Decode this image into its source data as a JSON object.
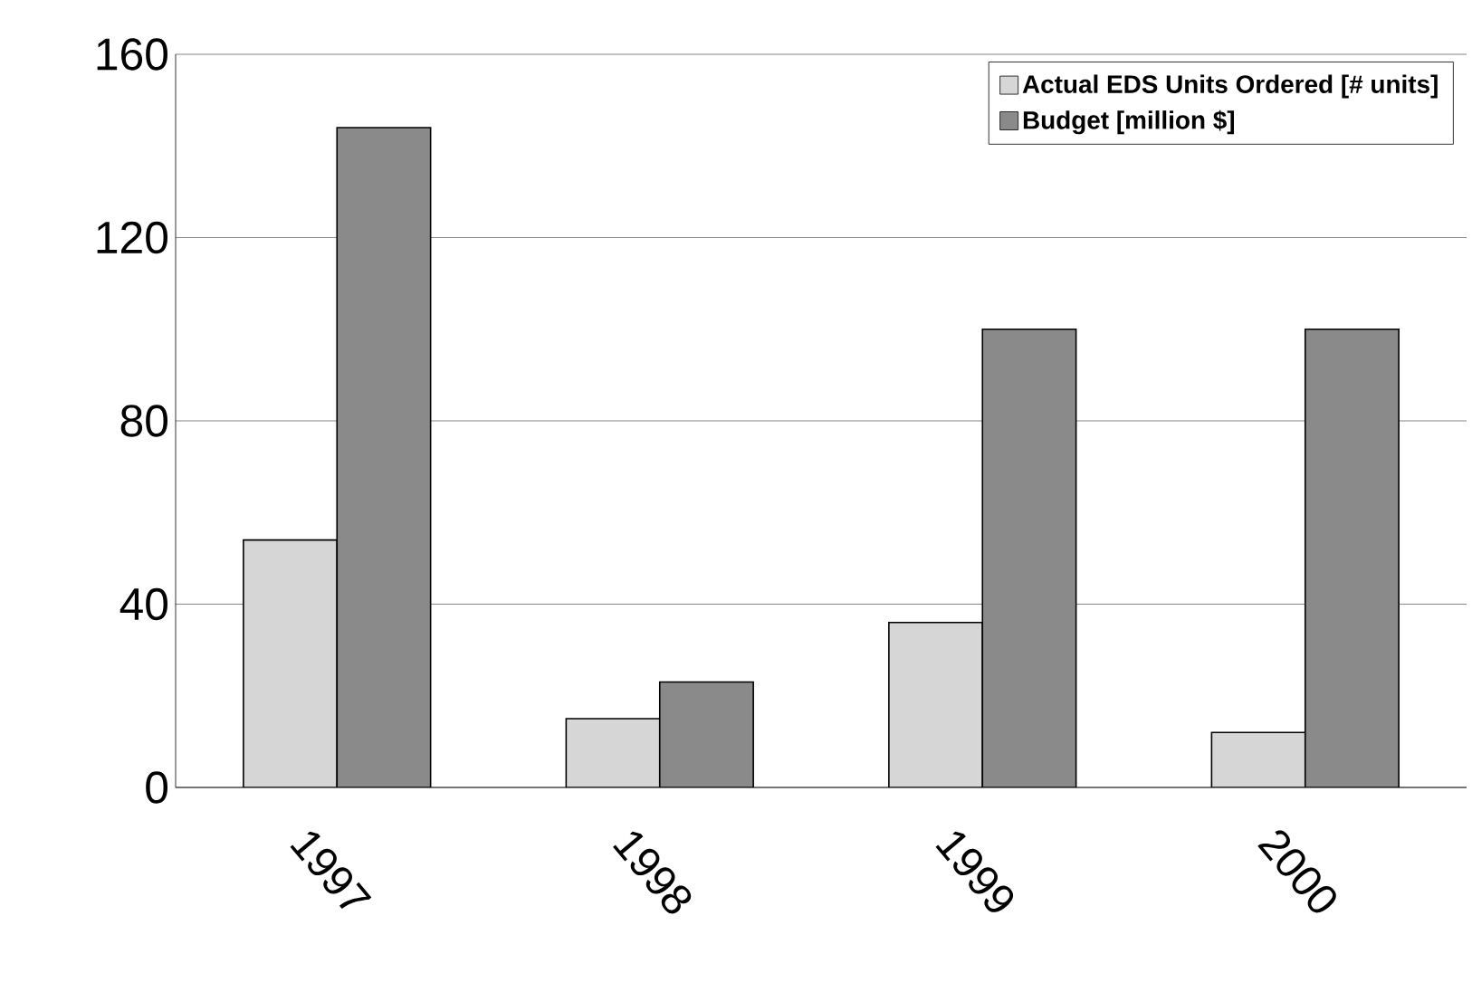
{
  "chart_data": {
    "type": "bar",
    "categories": [
      "1997",
      "1998",
      "1999",
      "2000"
    ],
    "series": [
      {
        "name": "Actual EDS Units Ordered [# units]",
        "color": "#d6d6d6",
        "values": [
          54,
          15,
          36,
          12
        ]
      },
      {
        "name": "Budget [million $]",
        "color": "#8a8a8a",
        "values": [
          144,
          23,
          100,
          100
        ]
      }
    ],
    "ylim": [
      0,
      160
    ],
    "yticks": [
      0,
      40,
      80,
      120,
      160
    ],
    "grid": "y",
    "legend": "top right"
  }
}
